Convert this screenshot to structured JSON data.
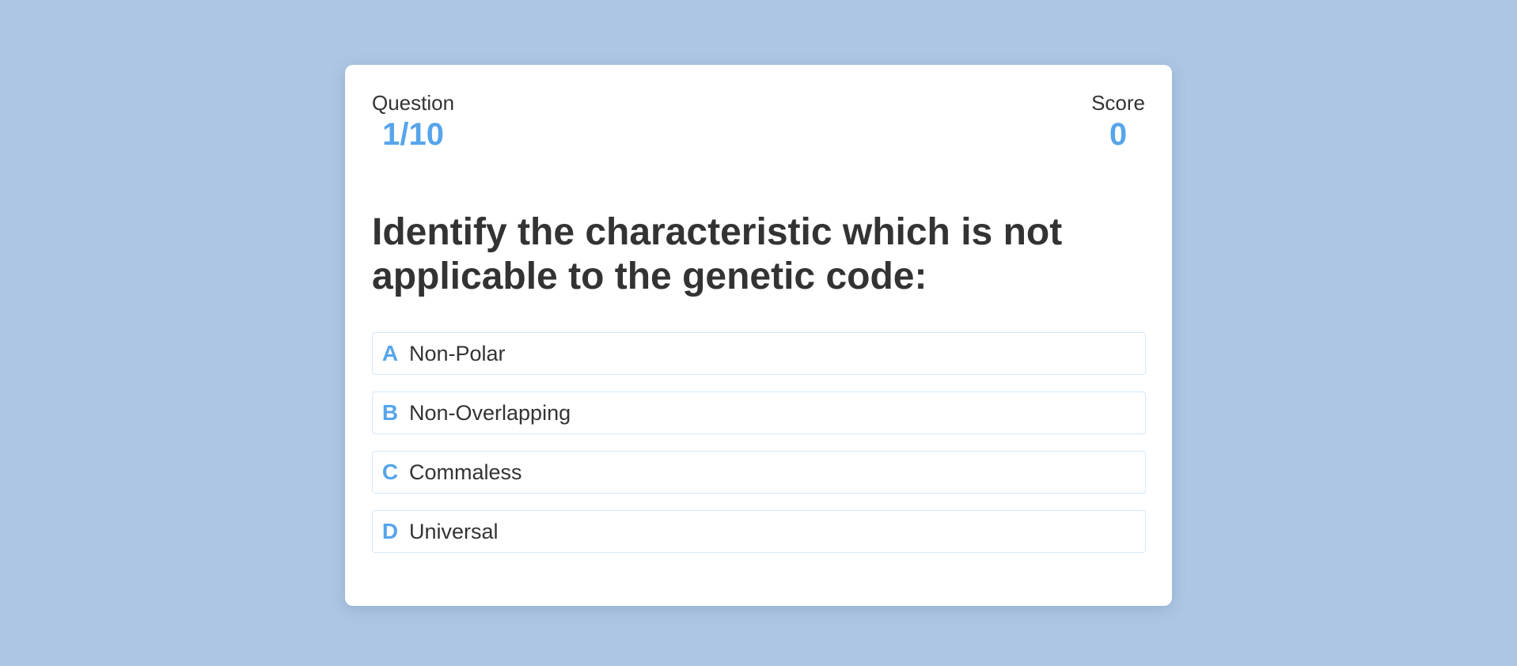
{
  "hud": {
    "question_label": "Question",
    "question_progress": "1/10",
    "score_label": "Score",
    "score_value": "0"
  },
  "question": {
    "text": "Identify the characteristic which is not applicable to the genetic code:"
  },
  "choices": [
    {
      "prefix": "A",
      "text": "Non-Polar"
    },
    {
      "prefix": "B",
      "text": "Non-Overlapping"
    },
    {
      "prefix": "C",
      "text": "Commaless"
    },
    {
      "prefix": "D",
      "text": "Universal"
    }
  ],
  "colors": {
    "background": "#adc6e4",
    "card": "#ffffff",
    "accent": "#56a5eb",
    "text": "#333333"
  }
}
